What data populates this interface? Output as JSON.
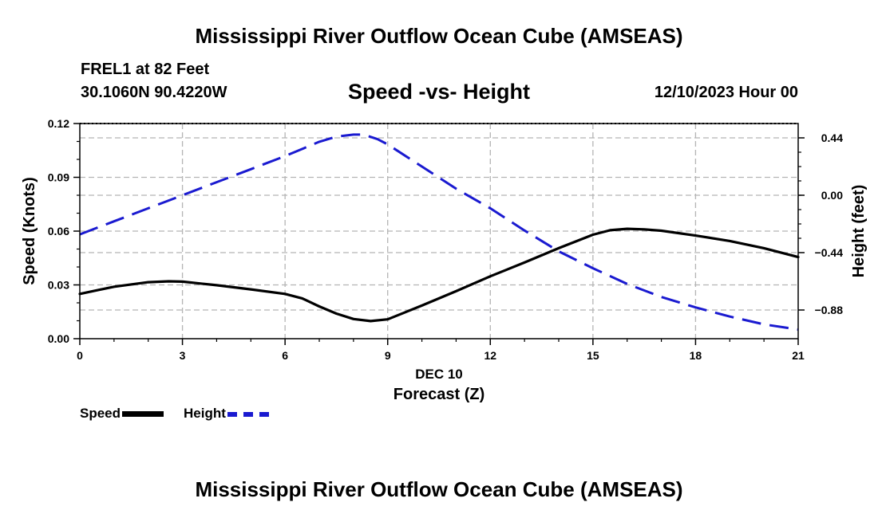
{
  "header": {
    "title": "Mississippi River Outflow Ocean Cube (AMSEAS)",
    "station": "FREL1 at 82 Feet",
    "coords": "30.1060N  90.4220W",
    "subtitle": "Speed -vs- Height",
    "datetime": "12/10/2023 Hour 00"
  },
  "footer": {
    "title": "Mississippi River Outflow Ocean Cube (AMSEAS)"
  },
  "legend": {
    "speed_label": "Speed",
    "height_label": "Height"
  },
  "colors": {
    "speed": "#000000",
    "height": "#1a1ad0",
    "grid": "#b4b4b4"
  },
  "chart_data": {
    "type": "line",
    "title": "Speed -vs- Height",
    "xlabel": "Forecast (Z)",
    "xlabel_date": "DEC 10",
    "ylabel": "Speed (Knots)",
    "ylabel_right": "Height (feet)",
    "xlim": [
      0,
      21
    ],
    "ylim": [
      0,
      0.12
    ],
    "ylim_right": [
      -1.1,
      0.55
    ],
    "x_ticks": [
      0,
      3,
      6,
      9,
      12,
      15,
      18,
      21
    ],
    "x_tick_labels": [
      "0",
      "3",
      "6",
      "9",
      "12",
      "15",
      "18",
      "21"
    ],
    "y_ticks": [
      0,
      0.03,
      0.06,
      0.09,
      0.12
    ],
    "y_tick_labels": [
      "0.00",
      "0.03",
      "0.06",
      "0.09",
      "0.12"
    ],
    "y_right_ticks": [
      0.44,
      0.0,
      -0.44,
      -0.88
    ],
    "y_right_tick_labels": [
      "0.44",
      "0.00",
      "−0.44",
      "−0.88"
    ],
    "grid": true,
    "legend_position": "bottom-left",
    "series": [
      {
        "name": "Speed",
        "axis": "left",
        "style": "solid",
        "x": [
          0,
          1,
          2,
          2.6,
          3,
          4,
          5,
          6,
          6.5,
          7,
          7.5,
          8,
          8.5,
          9,
          10,
          11,
          12,
          13,
          14,
          15,
          15.5,
          16,
          16.5,
          17,
          18,
          19,
          20,
          21
        ],
        "y": [
          0.025,
          0.029,
          0.0315,
          0.032,
          0.0318,
          0.0298,
          0.0275,
          0.025,
          0.0225,
          0.018,
          0.014,
          0.011,
          0.0098,
          0.0108,
          0.0185,
          0.0265,
          0.0348,
          0.0425,
          0.0505,
          0.058,
          0.0605,
          0.0613,
          0.061,
          0.0602,
          0.0575,
          0.0545,
          0.0505,
          0.0455
        ]
      },
      {
        "name": "Height",
        "axis": "right",
        "style": "dashed",
        "x": [
          0,
          1,
          2,
          3,
          4,
          5,
          6,
          7,
          7.5,
          8,
          8.3,
          8.7,
          9,
          10,
          11,
          12,
          13,
          14,
          15,
          16,
          17,
          18,
          19,
          20,
          21
        ],
        "y": [
          -0.3,
          -0.2,
          -0.1,
          0.0,
          0.1,
          0.2,
          0.3,
          0.41,
          0.45,
          0.465,
          0.465,
          0.43,
          0.39,
          0.22,
          0.05,
          -0.1,
          -0.27,
          -0.43,
          -0.56,
          -0.68,
          -0.78,
          -0.86,
          -0.93,
          -0.99,
          -1.03
        ]
      }
    ]
  }
}
